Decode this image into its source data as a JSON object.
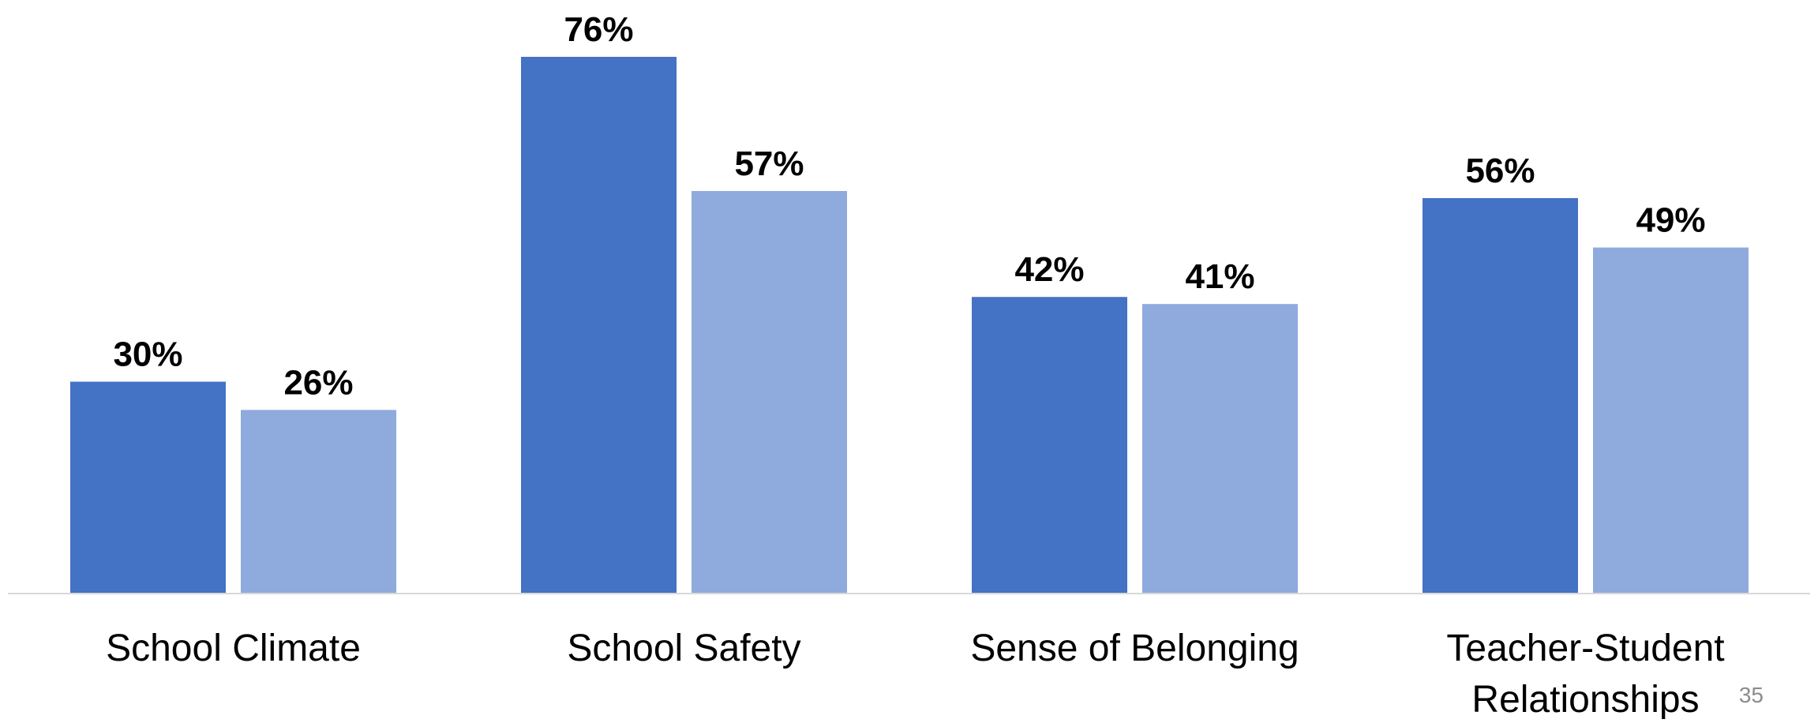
{
  "chart_data": {
    "type": "bar",
    "title": "",
    "xlabel": "",
    "ylabel": "",
    "ylim": [
      0,
      80
    ],
    "grid": false,
    "legend": "none",
    "categories": [
      [
        "School Climate"
      ],
      [
        "School Safety"
      ],
      [
        "Sense of Belonging"
      ],
      [
        "Teacher-Student",
        "Relationships"
      ]
    ],
    "series": [
      {
        "color": "#4472C4",
        "values": [
          30,
          76,
          42,
          56
        ],
        "labels": [
          "30%",
          "76%",
          "42%",
          "56%"
        ]
      },
      {
        "color": "#8FAADC",
        "values": [
          26,
          57,
          41,
          49
        ],
        "labels": [
          "26%",
          "57%",
          "41%",
          "49%"
        ]
      }
    ]
  },
  "page_number": "35",
  "axis_color": "#D9D9D9"
}
